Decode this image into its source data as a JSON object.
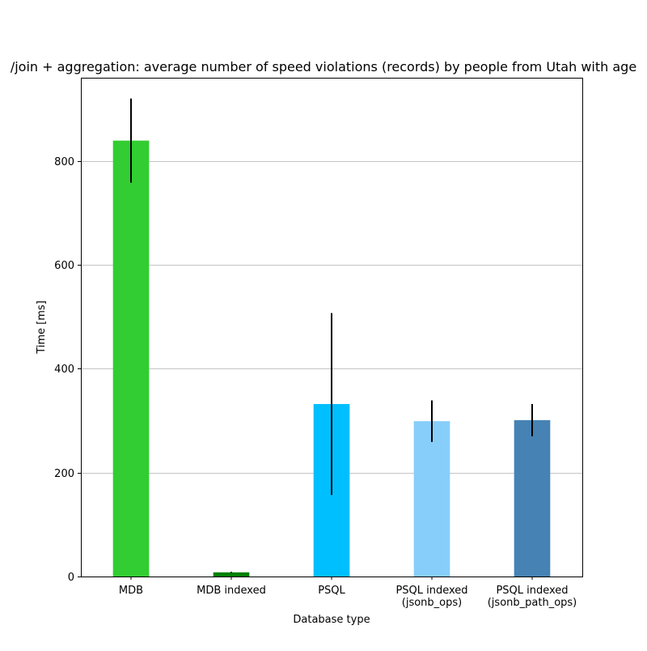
{
  "chart_data": {
    "type": "bar",
    "title": "/join + aggregation: average number of speed violations (records) by people from Utah with age",
    "xlabel": "Database type",
    "ylabel": "Time [ms]",
    "ylim": [
      0,
      960
    ],
    "yticks": [
      0,
      200,
      400,
      600,
      800
    ],
    "grid": "y-axis",
    "categories": [
      "MDB",
      "MDB indexed",
      "PSQL",
      "PSQL indexed\n(jsonb_ops)",
      "PSQL indexed\n(jsonb_path_ops)"
    ],
    "values": [
      839,
      8,
      332,
      299,
      301
    ],
    "error": [
      81,
      1,
      175,
      40,
      31
    ],
    "colors": [
      "#32cd32",
      "#008000",
      "#00bfff",
      "#87cefa",
      "#4682b4"
    ]
  }
}
